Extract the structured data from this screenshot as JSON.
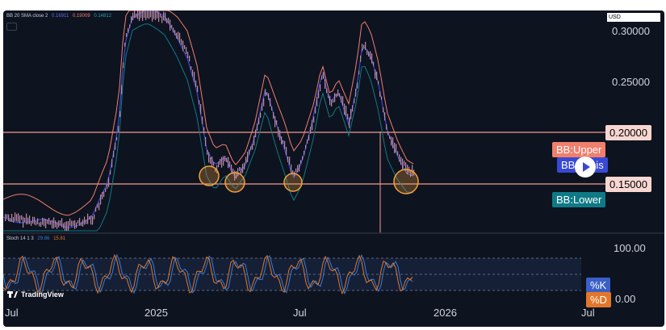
{
  "indicators": {
    "bb_label": "BB 20 SMA close 2",
    "bb_values": [
      "0.16911",
      "0.19009",
      "0.14812"
    ],
    "stoch_label": "Stoch 14 1 3",
    "stoch_values": [
      "29.86",
      "15.81"
    ]
  },
  "currency": "USD",
  "price_axis": [
    "0.30000",
    "0.25000",
    "0.20000",
    "0.15000"
  ],
  "stoch_axis": [
    "100.00",
    "0.00"
  ],
  "time_axis": [
    "Jul",
    "2025",
    "Jul",
    "2026",
    "Jul"
  ],
  "tags": {
    "bb_upper": "BB:Upper",
    "bb_basis": "BB:Basis",
    "bb_lower": "BB:Lower",
    "k": "%K",
    "d": "%D"
  },
  "watermark": "TradingView",
  "colors": {
    "background": "#0e1320",
    "candles": "#b889a6",
    "bb_upper": "#f07f6c",
    "bb_basis": "#3849d4",
    "bb_lower": "#0e7a86",
    "hline": "#f39b8e",
    "circle": "#f2a23a",
    "k": "#3a7bd5",
    "d": "#e2772a"
  },
  "chart_data": {
    "type": "candlestick",
    "x_ticks": [
      "Jul",
      "2025",
      "Jul",
      "2026",
      "Jul"
    ],
    "y_ticks": [
      0.3,
      0.25,
      0.2,
      0.15
    ],
    "ylim": [
      0.08,
      0.32
    ],
    "horizontal_lines": [
      0.2,
      0.15
    ],
    "series": [
      {
        "name": "BB:Upper",
        "last": 0.19009
      },
      {
        "name": "BB:Basis",
        "last": 0.16911
      },
      {
        "name": "BB:Lower",
        "last": 0.14812
      }
    ],
    "stochastic": {
      "name": "Stoch 14 1 3",
      "k": 29.86,
      "d": 15.81,
      "ylim": [
        0,
        100
      ]
    }
  }
}
